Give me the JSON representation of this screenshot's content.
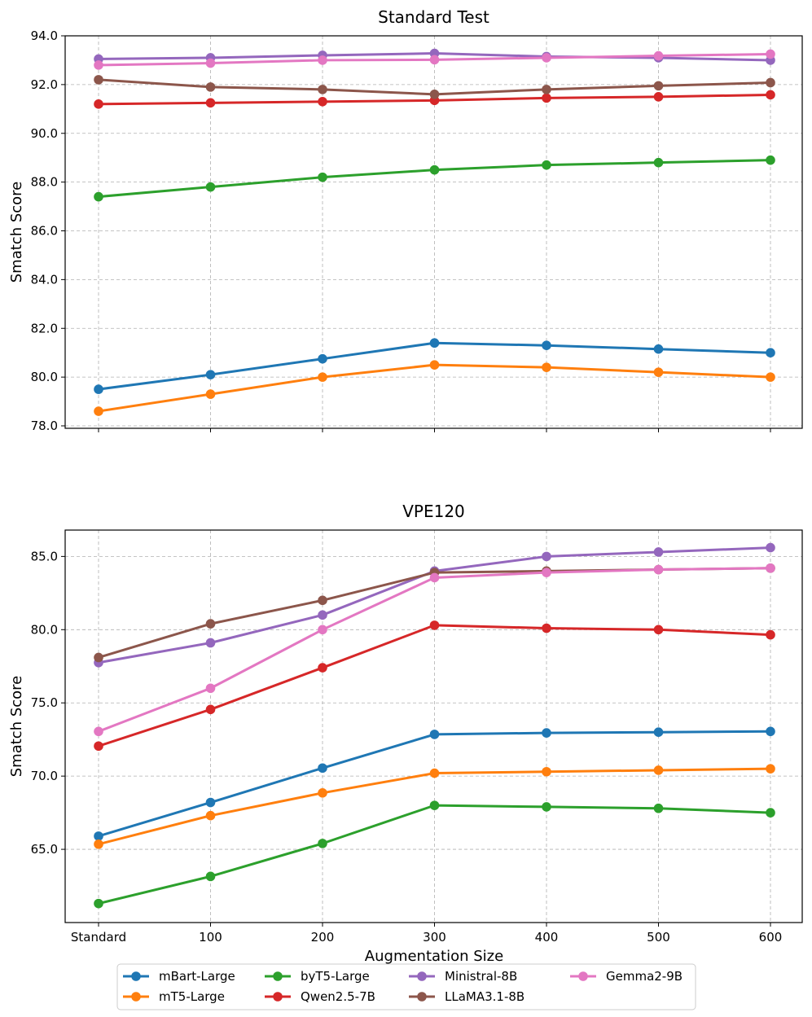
{
  "colors": {
    "mBart-Large": "#1f77b4",
    "mT5-Large": "#ff7f0e",
    "byT5-Large": "#2ca02c",
    "Qwen2.5-7B": "#d62728",
    "Ministral-8B": "#9467bd",
    "LLaMA3.1-8B": "#8c564b",
    "Gemma2-9B": "#e377c2"
  },
  "legend_order": [
    "mBart-Large",
    "mT5-Large",
    "byT5-Large",
    "Qwen2.5-7B",
    "Ministral-8B",
    "LLaMA3.1-8B",
    "Gemma2-9B"
  ],
  "legend_placement": "bottom-center",
  "shared_xlabel": "Augmentation Size",
  "chart_data": [
    {
      "type": "line",
      "title": "Standard Test",
      "xlabel": "",
      "ylabel": "Smatch Score",
      "categories": [
        "Standard",
        "100",
        "200",
        "300",
        "400",
        "500",
        "600"
      ],
      "ylim": [
        77.9,
        94.0
      ],
      "yticks": [
        78.0,
        80.0,
        82.0,
        84.0,
        86.0,
        88.0,
        90.0,
        92.0,
        94.0
      ],
      "ytick_labels": [
        "78.0",
        "80.0",
        "82.0",
        "84.0",
        "86.0",
        "88.0",
        "90.0",
        "92.0",
        "94.0"
      ],
      "grid": true,
      "show_xtick_labels": false,
      "series": [
        {
          "name": "mBart-Large",
          "values": [
            79.5,
            80.1,
            80.75,
            81.4,
            81.3,
            81.15,
            81.0
          ]
        },
        {
          "name": "mT5-Large",
          "values": [
            78.6,
            79.3,
            80.0,
            80.5,
            80.4,
            80.2,
            80.0
          ]
        },
        {
          "name": "byT5-Large",
          "values": [
            87.4,
            87.8,
            88.2,
            88.5,
            88.7,
            88.8,
            88.9
          ]
        },
        {
          "name": "Qwen2.5-7B",
          "values": [
            91.2,
            91.25,
            91.3,
            91.35,
            91.45,
            91.5,
            91.58
          ]
        },
        {
          "name": "Ministral-8B",
          "values": [
            93.05,
            93.1,
            93.2,
            93.28,
            93.15,
            93.1,
            93.0
          ]
        },
        {
          "name": "LLaMA3.1-8B",
          "values": [
            92.2,
            91.9,
            91.8,
            91.6,
            91.8,
            91.95,
            92.08
          ]
        },
        {
          "name": "Gemma2-9B",
          "values": [
            92.8,
            92.88,
            93.0,
            93.02,
            93.1,
            93.18,
            93.25
          ]
        }
      ]
    },
    {
      "type": "line",
      "title": "VPE120",
      "xlabel": "Augmentation Size",
      "ylabel": "Smatch Score",
      "categories": [
        "Standard",
        "100",
        "200",
        "300",
        "400",
        "500",
        "600"
      ],
      "ylim": [
        60.0,
        86.8
      ],
      "yticks": [
        65.0,
        70.0,
        75.0,
        80.0,
        85.0
      ],
      "ytick_labels": [
        "65.0",
        "70.0",
        "75.0",
        "80.0",
        "85.0"
      ],
      "grid": true,
      "show_xtick_labels": true,
      "series": [
        {
          "name": "mBart-Large",
          "values": [
            65.9,
            68.2,
            70.55,
            72.85,
            72.95,
            73.0,
            73.05
          ]
        },
        {
          "name": "mT5-Large",
          "values": [
            65.35,
            67.3,
            68.85,
            70.2,
            70.3,
            70.4,
            70.5
          ]
        },
        {
          "name": "byT5-Large",
          "values": [
            61.3,
            63.15,
            65.4,
            68.0,
            67.9,
            67.8,
            67.5
          ]
        },
        {
          "name": "Qwen2.5-7B",
          "values": [
            72.05,
            74.55,
            77.4,
            80.3,
            80.1,
            80.0,
            79.65
          ]
        },
        {
          "name": "Ministral-8B",
          "values": [
            77.75,
            79.1,
            81.0,
            84.0,
            85.0,
            85.3,
            85.6
          ]
        },
        {
          "name": "LLaMA3.1-8B",
          "values": [
            78.1,
            80.4,
            82.0,
            83.9,
            84.0,
            84.1,
            84.2
          ]
        },
        {
          "name": "Gemma2-9B",
          "values": [
            73.05,
            76.0,
            80.0,
            83.55,
            83.9,
            84.1,
            84.2
          ]
        }
      ]
    }
  ]
}
